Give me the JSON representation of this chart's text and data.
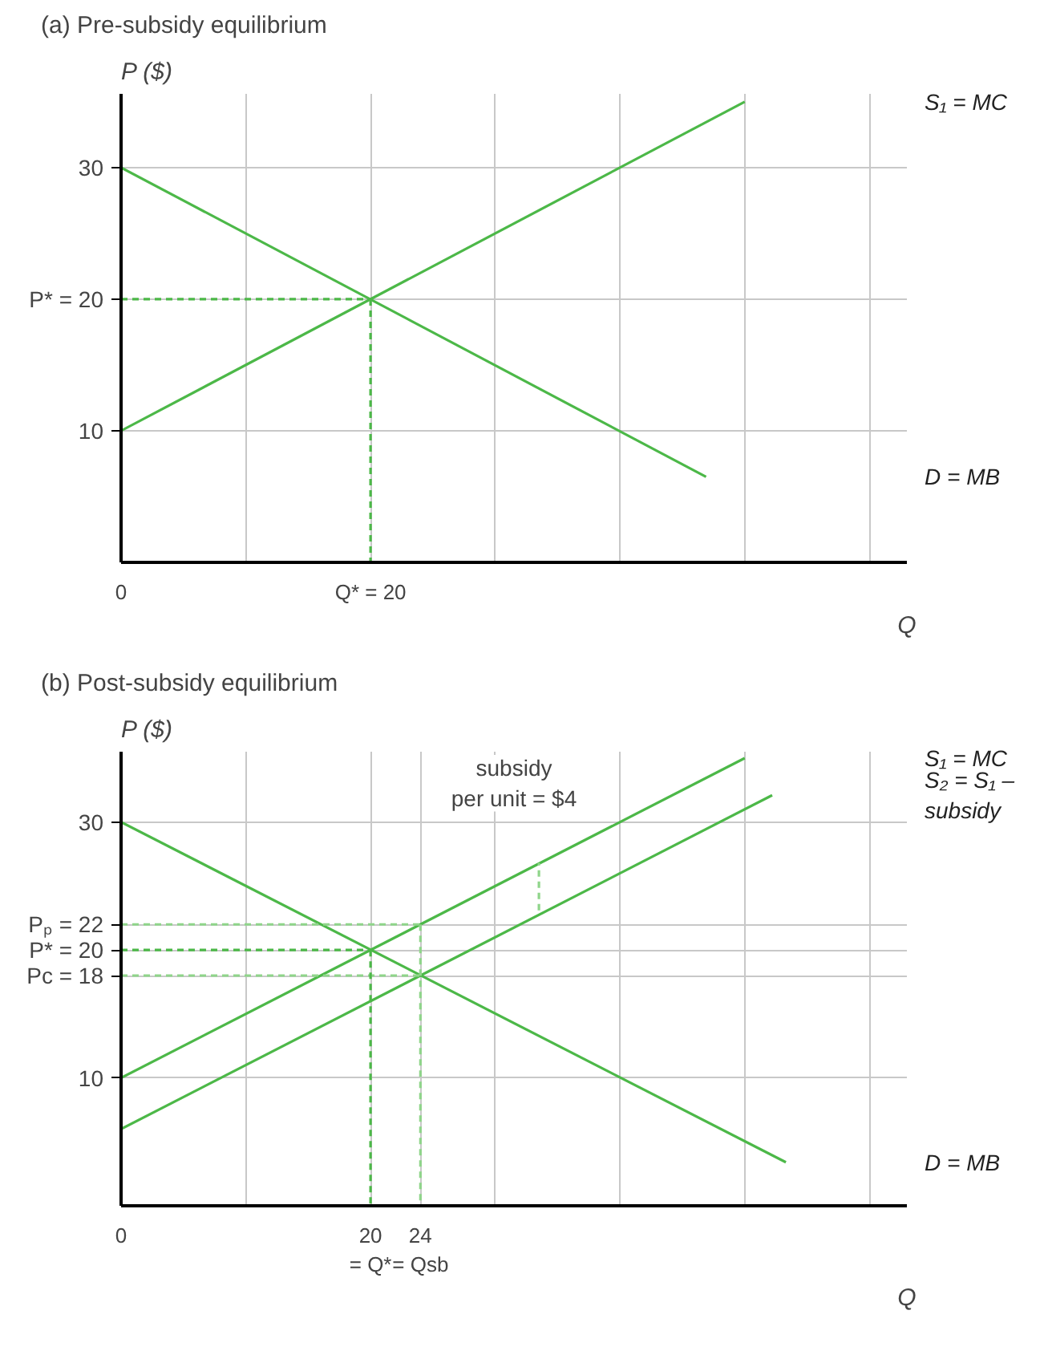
{
  "chart_data": [
    {
      "type": "line",
      "title": "(a) Pre-subsidy equilibrium",
      "xlabel": "Q",
      "ylabel": "P ($)",
      "xlim": [
        0,
        63
      ],
      "ylim": [
        0,
        35.6
      ],
      "xticks": [
        0,
        {
          "value": 10,
          "label": null
        },
        {
          "value": 20,
          "label": "Q* = 20"
        },
        {
          "value": 30,
          "label": null
        },
        {
          "value": 40,
          "label": null
        },
        {
          "value": 50,
          "label": null
        },
        {
          "value": 60,
          "label": null
        }
      ],
      "yticks": [
        10,
        {
          "value": 20,
          "label": "P* = 20"
        },
        30
      ],
      "grid": true,
      "series": [
        {
          "name": "S₁ = MC",
          "color": "#4cb848",
          "x": [
            0,
            50
          ],
          "values": [
            10,
            35
          ]
        },
        {
          "name": "D = MB",
          "color": "#4cb848",
          "x": [
            0,
            46.9
          ],
          "values": [
            30,
            6.5
          ]
        },
        {
          "color": "#4cb848",
          "line_style": "dashed",
          "x": [
            0,
            20
          ],
          "values": [
            20,
            20
          ]
        },
        {
          "color": "#4cb848",
          "line_style": "dashed",
          "x": [
            20,
            20
          ],
          "values": [
            20,
            0
          ]
        }
      ]
    },
    {
      "type": "line",
      "title": "(b) Post-subsidy equilibrium",
      "xlabel": "Q",
      "ylabel": "P ($)",
      "xlim": [
        0,
        63
      ],
      "ylim": [
        0,
        35.5
      ],
      "xticks": [
        0,
        {
          "value": 10,
          "label": null
        },
        {
          "value": 20,
          "label": "20\n= Q*"
        },
        {
          "value": 24,
          "label": "24\n= Qsb"
        },
        {
          "value": 30,
          "label": null
        },
        {
          "value": 40,
          "label": null
        },
        {
          "value": 50,
          "label": null
        },
        {
          "value": 60,
          "label": null
        }
      ],
      "yticks": [
        10,
        {
          "value": 18,
          "label": "Pc = 18"
        },
        {
          "value": 20,
          "label": "P* = 20"
        },
        {
          "value": 22,
          "label": "Pₚ = 22"
        },
        30
      ],
      "grid": true,
      "annotations": [
        "subsidy\nper unit = $4"
      ],
      "series": [
        {
          "name": "S₁ = MC",
          "color": "#4cb848",
          "x": [
            0,
            50
          ],
          "values": [
            10,
            35
          ]
        },
        {
          "name": "S₂ = S₁ – subsidy",
          "color": "#4cb848",
          "x": [
            0,
            52.2
          ],
          "values": [
            6,
            32.1
          ]
        },
        {
          "name": "D = MB",
          "color": "#4cb848",
          "x": [
            0,
            53.3
          ],
          "values": [
            30,
            3.4
          ]
        },
        {
          "color": "#8fd58a",
          "line_style": "dashed",
          "x": [
            0,
            24
          ],
          "values": [
            22,
            22
          ]
        },
        {
          "color": "#4cb848",
          "line_style": "dashed",
          "x": [
            0,
            20
          ],
          "values": [
            20,
            20
          ]
        },
        {
          "color": "#8fd58a",
          "line_style": "dashed",
          "x": [
            0,
            24
          ],
          "values": [
            18,
            18
          ]
        },
        {
          "color": "#4cb848",
          "line_style": "dashed",
          "x": [
            20,
            20
          ],
          "values": [
            20,
            0
          ]
        },
        {
          "color": "#8fd58a",
          "line_style": "dashed",
          "x": [
            24,
            24
          ],
          "values": [
            22,
            0
          ]
        },
        {
          "color": "#8fd58a",
          "line_style": "dashed",
          "x": [
            33.5,
            33.5
          ],
          "values": [
            23.1,
            26.8
          ]
        }
      ]
    }
  ]
}
